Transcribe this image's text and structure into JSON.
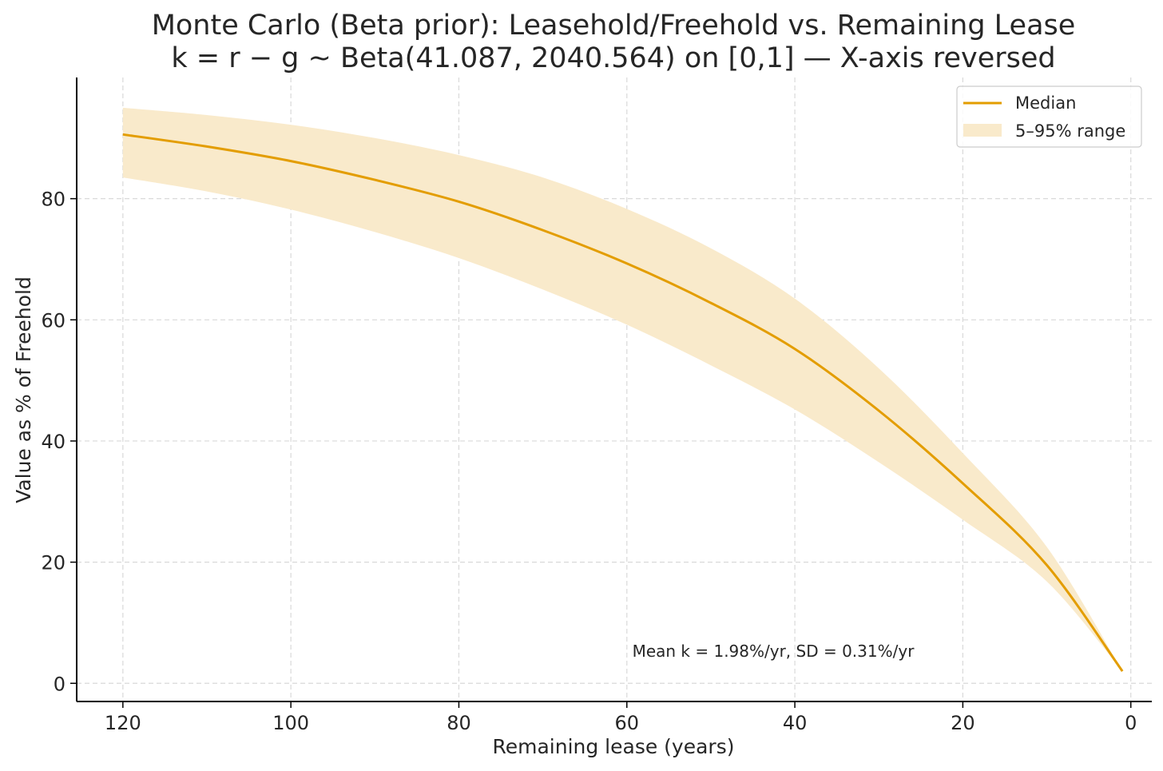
{
  "chart_data": {
    "type": "line",
    "title": "Monte Carlo (Beta prior): Leasehold/Freehold vs. Remaining Lease",
    "subtitle": "k = r − g ~ Beta(41.087, 2040.564) on [0,1] — X-axis reversed",
    "xlabel": "Remaining lease (years)",
    "ylabel": "Value as % of Freehold",
    "x_reversed": true,
    "xlim": [
      125.5,
      -2.5
    ],
    "ylim": [
      -3,
      100
    ],
    "x_ticks": [
      "120",
      "100",
      "80",
      "60",
      "40",
      "20",
      "0"
    ],
    "y_ticks": [
      "0",
      "20",
      "40",
      "60",
      "80"
    ],
    "grid": true,
    "legend_position": "top-right",
    "legend": {
      "median": "Median",
      "band": "5–95% range"
    },
    "annotation": "Mean k = 1.98%/yr, SD = 0.31%/yr",
    "colors": {
      "median": "#E39D00",
      "band": "#F9EACB",
      "axis": "#000000",
      "grid": "#D9D9D9"
    },
    "x": [
      1,
      10,
      20,
      30,
      40,
      50,
      60,
      70,
      80,
      90,
      100,
      110,
      120
    ],
    "series": [
      {
        "name": "Median",
        "values": [
          2,
          19.5,
          33.0,
          45.0,
          55.2,
          62.8,
          69.3,
          74.8,
          79.5,
          83.1,
          86.2,
          88.6,
          90.6
        ]
      },
      {
        "name": "5th percentile",
        "values": [
          2,
          16.8,
          27.0,
          36.5,
          45.2,
          52.5,
          59.2,
          65.0,
          70.2,
          74.5,
          78.2,
          81.2,
          83.5
        ]
      },
      {
        "name": "95th percentile",
        "values": [
          2,
          22.5,
          38.0,
          52.0,
          63.5,
          71.8,
          78.3,
          83.5,
          87.2,
          90.0,
          92.2,
          93.8,
          95.0
        ]
      }
    ]
  }
}
